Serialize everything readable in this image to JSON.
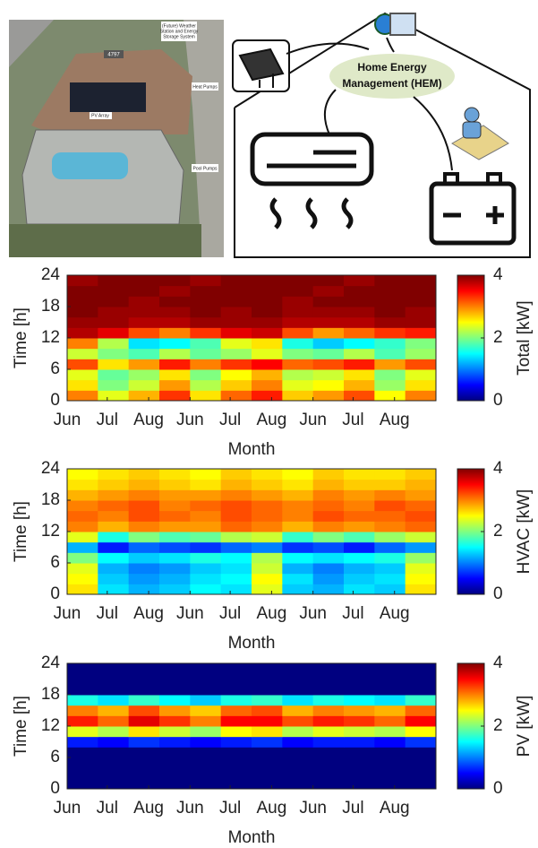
{
  "photo": {
    "weather_label": [
      "(Future) Weather",
      "Station and Energy",
      "Storage System"
    ],
    "house_number": "4797",
    "heat_label": "Heat Pumps",
    "pv_label": "PV Array",
    "pool_label": "Pool Pumps"
  },
  "diagram": {
    "hem_label": [
      "Home Energy",
      "Management (HEM)"
    ]
  },
  "chart_data": [
    {
      "type": "heatmap",
      "ylabel": "Time [h]",
      "xlabel": "Month",
      "colorbar_label": "Total [kW]",
      "colormap": "jet",
      "xlim": [
        0,
        276
      ],
      "xticks": [
        {
          "value": 0,
          "label": "Jun"
        },
        {
          "value": 30,
          "label": "Jul"
        },
        {
          "value": 61,
          "label": "Aug"
        },
        {
          "value": 92,
          "label": "Jun"
        },
        {
          "value": 122,
          "label": "Jul"
        },
        {
          "value": 153,
          "label": "Aug"
        },
        {
          "value": 184,
          "label": "Jun"
        },
        {
          "value": 214,
          "label": "Jul"
        },
        {
          "value": 245,
          "label": "Aug"
        }
      ],
      "ylim": [
        0,
        24
      ],
      "yticks": [
        0,
        6,
        12,
        18,
        24
      ],
      "clim": [
        0,
        4
      ],
      "cticks": [
        0,
        2,
        4
      ],
      "z": [
        [
          3.0,
          2.4,
          2.8,
          3.3,
          2.6,
          3.1,
          3.4,
          2.7,
          2.9,
          3.2,
          2.5,
          3.0
        ],
        [
          2.6,
          2.0,
          2.3,
          2.9,
          2.2,
          2.7,
          3.0,
          2.4,
          2.5,
          2.8,
          2.1,
          2.6
        ],
        [
          2.4,
          1.9,
          2.1,
          2.6,
          2.0,
          2.5,
          2.8,
          2.2,
          2.3,
          2.6,
          2.0,
          2.4
        ],
        [
          3.2,
          2.6,
          2.9,
          3.4,
          3.0,
          3.3,
          3.5,
          3.1,
          3.2,
          3.4,
          2.9,
          3.2
        ],
        [
          2.3,
          2.0,
          1.8,
          2.2,
          1.9,
          2.1,
          2.4,
          2.0,
          1.9,
          2.2,
          1.8,
          2.1
        ],
        [
          3.0,
          2.2,
          1.4,
          1.5,
          1.8,
          2.4,
          2.6,
          1.6,
          1.3,
          1.5,
          1.7,
          2.0
        ],
        [
          3.8,
          3.6,
          3.2,
          3.0,
          3.3,
          3.6,
          3.7,
          3.2,
          2.9,
          3.1,
          3.3,
          3.4
        ],
        [
          3.9,
          3.9,
          3.8,
          3.8,
          3.9,
          3.9,
          3.9,
          3.8,
          3.8,
          3.8,
          3.9,
          3.9
        ],
        [
          4.0,
          3.9,
          3.9,
          3.9,
          4.0,
          3.9,
          4.0,
          3.9,
          3.9,
          3.9,
          4.0,
          3.9
        ],
        [
          4.0,
          4.0,
          3.9,
          4.0,
          4.0,
          4.0,
          4.0,
          3.9,
          4.0,
          4.0,
          4.0,
          4.0
        ],
        [
          4.0,
          4.0,
          4.0,
          3.9,
          4.0,
          4.0,
          4.0,
          4.0,
          3.9,
          4.0,
          4.0,
          4.0
        ],
        [
          3.9,
          4.0,
          4.0,
          4.0,
          3.9,
          4.0,
          4.0,
          4.0,
          4.0,
          3.9,
          4.0,
          4.0
        ]
      ]
    },
    {
      "type": "heatmap",
      "ylabel": "Time [h]",
      "xlabel": "Month",
      "colorbar_label": "HVAC [kW]",
      "colormap": "jet",
      "xlim": [
        0,
        276
      ],
      "xticks": [
        {
          "value": 0,
          "label": "Jun"
        },
        {
          "value": 30,
          "label": "Jul"
        },
        {
          "value": 61,
          "label": "Aug"
        },
        {
          "value": 92,
          "label": "Jun"
        },
        {
          "value": 122,
          "label": "Jul"
        },
        {
          "value": 153,
          "label": "Aug"
        },
        {
          "value": 184,
          "label": "Jun"
        },
        {
          "value": 214,
          "label": "Jul"
        },
        {
          "value": 245,
          "label": "Aug"
        }
      ],
      "ylim": [
        0,
        24
      ],
      "yticks": [
        0,
        6,
        12,
        18,
        24
      ],
      "clim": [
        0,
        4
      ],
      "cticks": [
        0,
        2,
        4
      ],
      "z": [
        [
          2.6,
          1.4,
          1.2,
          1.3,
          1.5,
          1.4,
          2.4,
          1.3,
          1.2,
          1.4,
          1.3,
          2.6
        ],
        [
          2.5,
          1.3,
          1.1,
          1.2,
          1.4,
          1.5,
          2.5,
          1.4,
          1.1,
          1.3,
          1.4,
          2.5
        ],
        [
          2.4,
          1.2,
          1.0,
          1.1,
          1.3,
          1.4,
          2.3,
          1.2,
          1.0,
          1.2,
          1.3,
          2.4
        ],
        [
          2.0,
          1.5,
          1.3,
          1.4,
          1.6,
          1.5,
          2.2,
          1.5,
          1.4,
          1.5,
          1.6,
          2.1
        ],
        [
          1.2,
          0.6,
          0.9,
          0.8,
          0.7,
          0.9,
          1.0,
          0.7,
          0.8,
          0.6,
          0.9,
          1.1
        ],
        [
          2.4,
          1.6,
          2.0,
          1.8,
          1.9,
          2.2,
          2.3,
          1.7,
          2.0,
          1.8,
          2.1,
          2.3
        ],
        [
          3.0,
          2.8,
          3.0,
          2.9,
          2.9,
          3.1,
          3.0,
          2.8,
          3.0,
          2.9,
          3.0,
          3.1
        ],
        [
          3.1,
          3.0,
          3.2,
          3.1,
          3.0,
          3.2,
          3.1,
          3.0,
          3.2,
          3.1,
          3.1,
          3.2
        ],
        [
          3.0,
          3.1,
          3.2,
          3.0,
          3.1,
          3.2,
          3.1,
          3.0,
          3.1,
          3.0,
          3.2,
          3.1
        ],
        [
          2.8,
          2.9,
          3.0,
          2.9,
          2.9,
          3.0,
          2.9,
          2.8,
          3.0,
          2.9,
          3.0,
          2.9
        ],
        [
          2.6,
          2.7,
          2.8,
          2.7,
          2.6,
          2.8,
          2.7,
          2.6,
          2.8,
          2.7,
          2.7,
          2.8
        ],
        [
          2.5,
          2.6,
          2.7,
          2.6,
          2.5,
          2.7,
          2.6,
          2.5,
          2.7,
          2.6,
          2.6,
          2.7
        ]
      ]
    },
    {
      "type": "heatmap",
      "ylabel": "Time [h]",
      "xlabel": "Month",
      "colorbar_label": "PV [kW]",
      "colormap": "jet",
      "xlim": [
        0,
        276
      ],
      "xticks": [
        {
          "value": 0,
          "label": "Jun"
        },
        {
          "value": 30,
          "label": "Jul"
        },
        {
          "value": 61,
          "label": "Aug"
        },
        {
          "value": 92,
          "label": "Jun"
        },
        {
          "value": 122,
          "label": "Jul"
        },
        {
          "value": 153,
          "label": "Aug"
        },
        {
          "value": 184,
          "label": "Jun"
        },
        {
          "value": 214,
          "label": "Jul"
        },
        {
          "value": 245,
          "label": "Aug"
        }
      ],
      "ylim": [
        0,
        24
      ],
      "yticks": [
        0,
        6,
        12,
        18,
        24
      ],
      "clim": [
        0,
        4
      ],
      "cticks": [
        0,
        2,
        4
      ],
      "z": [
        [
          0,
          0,
          0,
          0,
          0,
          0,
          0,
          0,
          0,
          0,
          0,
          0
        ],
        [
          0,
          0,
          0,
          0,
          0,
          0,
          0,
          0,
          0,
          0,
          0,
          0
        ],
        [
          0,
          0,
          0,
          0,
          0,
          0,
          0,
          0,
          0,
          0,
          0,
          0
        ],
        [
          0,
          0,
          0,
          0,
          0,
          0,
          0,
          0,
          0,
          0,
          0,
          0
        ],
        [
          0.6,
          0.5,
          0.7,
          0.6,
          0.5,
          0.6,
          0.7,
          0.5,
          0.6,
          0.6,
          0.5,
          0.7
        ],
        [
          2.4,
          2.2,
          2.6,
          2.3,
          2.1,
          2.5,
          2.6,
          2.2,
          2.4,
          2.3,
          2.2,
          2.5
        ],
        [
          3.4,
          3.1,
          3.6,
          3.3,
          3.0,
          3.5,
          3.5,
          3.2,
          3.4,
          3.3,
          3.1,
          3.5
        ],
        [
          3.0,
          2.8,
          3.2,
          2.9,
          2.7,
          3.1,
          3.2,
          2.8,
          3.0,
          2.9,
          2.8,
          3.1
        ],
        [
          1.6,
          1.4,
          1.7,
          1.5,
          1.3,
          1.6,
          1.7,
          1.4,
          1.6,
          1.5,
          1.4,
          1.7
        ],
        [
          0,
          0,
          0,
          0,
          0,
          0,
          0,
          0,
          0,
          0,
          0,
          0
        ],
        [
          0,
          0,
          0,
          0,
          0,
          0,
          0,
          0,
          0,
          0,
          0,
          0
        ],
        [
          0,
          0,
          0,
          0,
          0,
          0,
          0,
          0,
          0,
          0,
          0,
          0
        ]
      ]
    }
  ]
}
